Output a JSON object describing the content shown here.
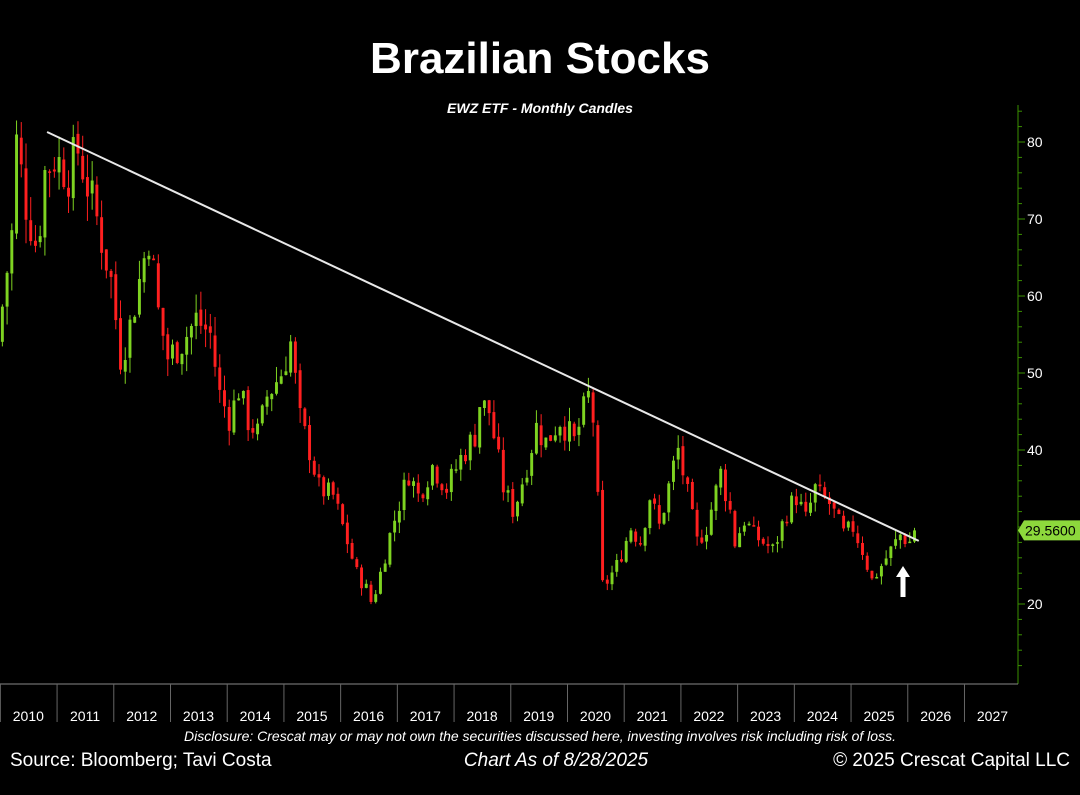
{
  "header": {
    "title": "Brazilian Stocks",
    "subtitle": "EWZ ETF - Monthly Candles"
  },
  "footer": {
    "disclosure": "Disclosure: Crescat may or may not own the securities discussed here, investing involves risk including risk of loss.",
    "source": "Source: Bloomberg; Tavi Costa",
    "as_of": "Chart As of 8/28/2025",
    "copyright": "© 2025 Crescat Capital LLC"
  },
  "colors": {
    "up": "#7ed321",
    "down": "#ff1f1f",
    "trendline": "#e8e8e8",
    "axis": "#3a8f00",
    "last_price_tag": "#8dd83c"
  },
  "chart_data": {
    "type": "candlestick",
    "interval": "monthly",
    "ylim": [
      10,
      84
    ],
    "yticks": [
      20,
      30,
      40,
      50,
      60,
      70,
      80
    ],
    "ytick_labels": [
      "20",
      "40",
      "50",
      "60",
      "70",
      "80"
    ],
    "xticks": [
      "2010",
      "2011",
      "2012",
      "2013",
      "2014",
      "2015",
      "2016",
      "2017",
      "2018",
      "2019",
      "2020",
      "2021",
      "2022",
      "2023",
      "2024",
      "2025",
      "2026",
      "2027"
    ],
    "x_range": [
      2009.5,
      2027.7
    ],
    "last_price": "29.5600",
    "last_price_value": 29.56,
    "trendline": {
      "start": [
        2010.33,
        81.3
      ],
      "end": [
        2025.7,
        28.2
      ]
    },
    "annotation": "up-arrow-below-last-candle",
    "price_path": [
      [
        2009.5,
        54
      ],
      [
        2009.75,
        68
      ],
      [
        2009.83,
        80
      ],
      [
        2010.0,
        72
      ],
      [
        2010.2,
        66
      ],
      [
        2010.33,
        76
      ],
      [
        2010.5,
        78
      ],
      [
        2010.75,
        76
      ],
      [
        2010.92,
        79
      ],
      [
        2011.1,
        74
      ],
      [
        2011.25,
        70
      ],
      [
        2011.5,
        62
      ],
      [
        2011.67,
        52
      ],
      [
        2011.83,
        56
      ],
      [
        2012.0,
        62
      ],
      [
        2012.17,
        68
      ],
      [
        2012.33,
        58
      ],
      [
        2012.5,
        52
      ],
      [
        2012.75,
        54
      ],
      [
        2012.92,
        56
      ],
      [
        2013.0,
        57
      ],
      [
        2013.25,
        55
      ],
      [
        2013.42,
        47
      ],
      [
        2013.6,
        44
      ],
      [
        2013.75,
        48
      ],
      [
        2013.9,
        44
      ],
      [
        2014.1,
        42
      ],
      [
        2014.25,
        47
      ],
      [
        2014.5,
        50
      ],
      [
        2014.67,
        54
      ],
      [
        2014.83,
        44
      ],
      [
        2015.0,
        40
      ],
      [
        2015.17,
        35
      ],
      [
        2015.42,
        34
      ],
      [
        2015.67,
        28
      ],
      [
        2015.83,
        24
      ],
      [
        2016.0,
        22
      ],
      [
        2016.1,
        20
      ],
      [
        2016.25,
        24
      ],
      [
        2016.42,
        29
      ],
      [
        2016.58,
        33
      ],
      [
        2016.75,
        37
      ],
      [
        2016.92,
        34
      ],
      [
        2017.17,
        38
      ],
      [
        2017.42,
        35
      ],
      [
        2017.67,
        39
      ],
      [
        2017.92,
        42
      ],
      [
        2018.0,
        46
      ],
      [
        2018.17,
        45
      ],
      [
        2018.42,
        35
      ],
      [
        2018.6,
        32
      ],
      [
        2018.83,
        38
      ],
      [
        2019.0,
        43
      ],
      [
        2019.17,
        41
      ],
      [
        2019.42,
        44
      ],
      [
        2019.67,
        41
      ],
      [
        2019.83,
        45
      ],
      [
        2019.92,
        47
      ],
      [
        2020.0,
        44
      ],
      [
        2020.17,
        22
      ],
      [
        2020.42,
        25
      ],
      [
        2020.67,
        30
      ],
      [
        2020.83,
        28
      ],
      [
        2021.0,
        34
      ],
      [
        2021.17,
        30
      ],
      [
        2021.42,
        38
      ],
      [
        2021.5,
        40
      ],
      [
        2021.67,
        34
      ],
      [
        2021.83,
        28
      ],
      [
        2022.0,
        30
      ],
      [
        2022.25,
        37
      ],
      [
        2022.42,
        32
      ],
      [
        2022.5,
        28
      ],
      [
        2022.67,
        31
      ],
      [
        2022.83,
        29
      ],
      [
        2023.0,
        28
      ],
      [
        2023.17,
        27
      ],
      [
        2023.42,
        32
      ],
      [
        2023.58,
        34
      ],
      [
        2023.75,
        31
      ],
      [
        2023.92,
        35
      ],
      [
        2024.0,
        34
      ],
      [
        2024.17,
        33
      ],
      [
        2024.42,
        29
      ],
      [
        2024.58,
        30
      ],
      [
        2024.75,
        27
      ],
      [
        2024.92,
        23
      ],
      [
        2025.0,
        24
      ],
      [
        2025.17,
        26
      ],
      [
        2025.42,
        29
      ],
      [
        2025.58,
        28
      ],
      [
        2025.66,
        29.56
      ]
    ]
  }
}
